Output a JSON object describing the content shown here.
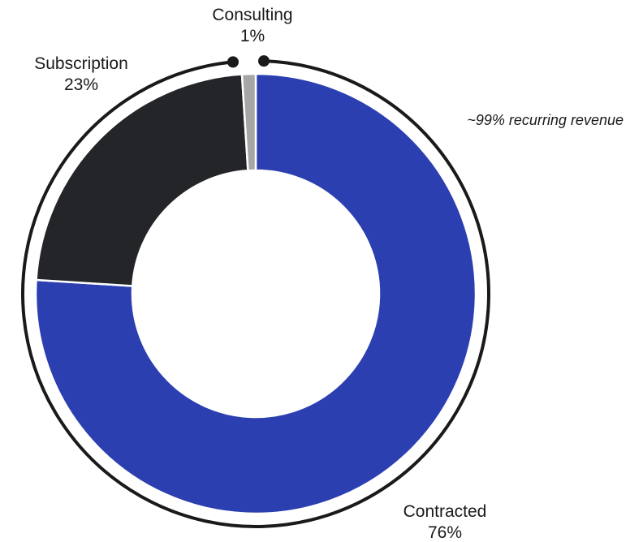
{
  "chart_data": {
    "type": "pie",
    "variant": "donut",
    "title": "",
    "slices": [
      {
        "label": "Contracted",
        "value": 76,
        "value_label": "76%",
        "color": "#2b3fb0"
      },
      {
        "label": "Subscription",
        "value": 23,
        "value_label": "23%",
        "color": "#242528"
      },
      {
        "label": "Consulting",
        "value": 1,
        "value_label": "1%",
        "color": "#a6a6a6"
      }
    ],
    "annotation": {
      "text": "~99% recurring revenue",
      "covers": [
        "Contracted",
        "Subscription"
      ]
    },
    "legend": "none"
  },
  "colors": {
    "bracket": "#1a1a1a",
    "text": "#1a1a1a",
    "slice_border": "#ffffff"
  }
}
